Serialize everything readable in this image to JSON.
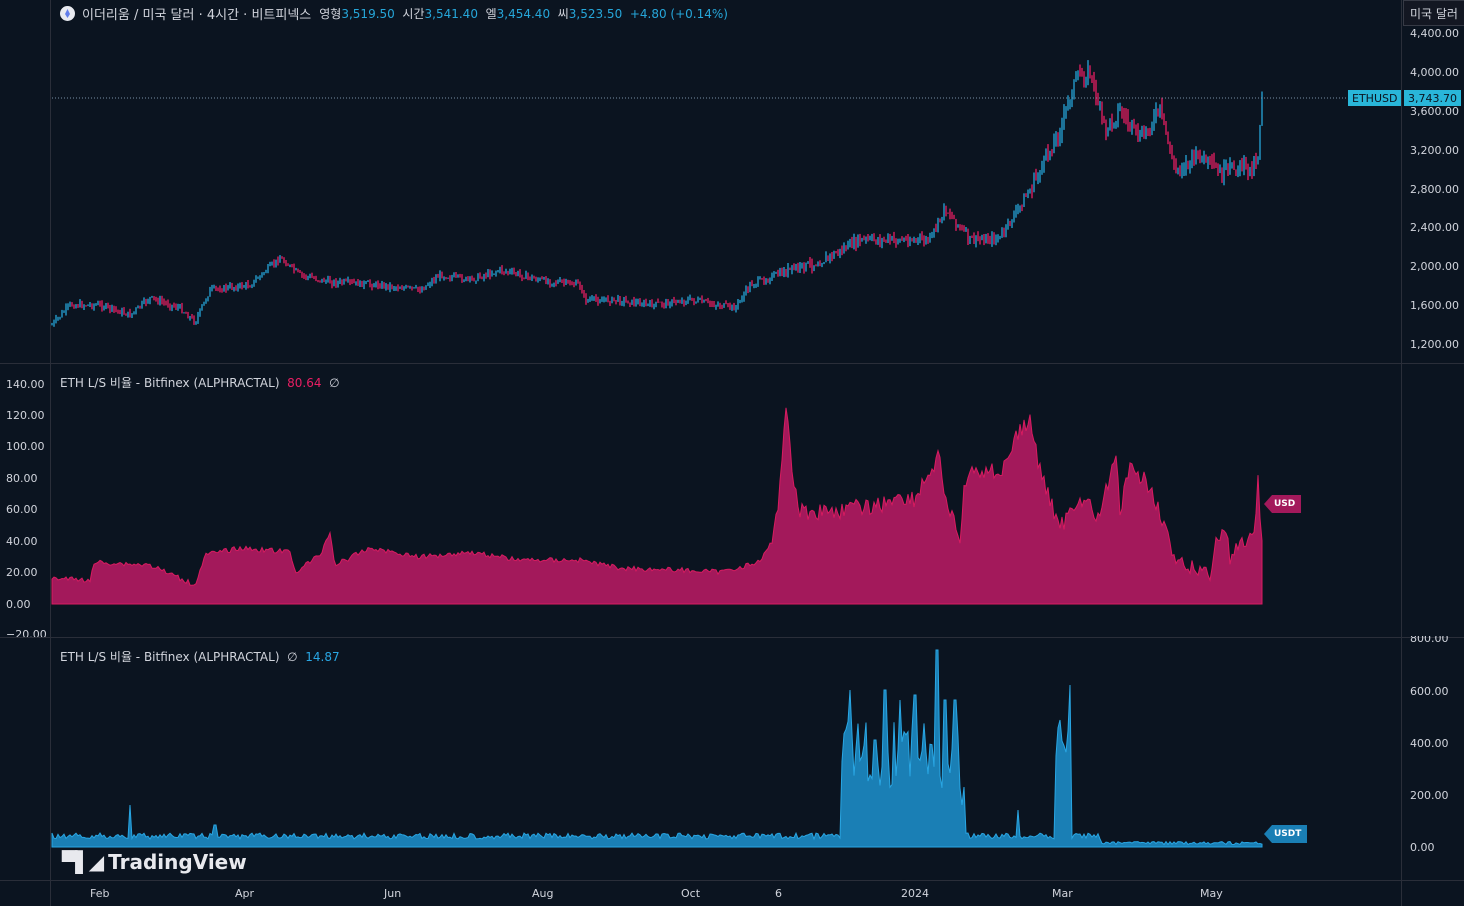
{
  "header": {
    "title": "이더리움 / 미국 달러 · 4시간 · 비트피넥스",
    "ohlc": [
      {
        "label": "영형",
        "value": "3,519.50"
      },
      {
        "label": "시간",
        "value": "3,541.40"
      },
      {
        "label": "엘",
        "value": "3,454.40"
      },
      {
        "label": "씨",
        "value": "3,523.50"
      }
    ],
    "change": "+4.80 (+0.14%)"
  },
  "currency_button": "미국 달러",
  "price_axis": [
    "4,400.00",
    "4,000.00",
    "3,600.00",
    "3,200.00",
    "2,800.00",
    "2,400.00",
    "2,000.00",
    "1,600.00",
    "1,200.00"
  ],
  "symbol_tag": "ETHUSD",
  "last_price": "3,743.70",
  "indicator1": {
    "title": "ETH L/S 비율 - Bitfinex (ALPHRACTAL)",
    "value": "80.64",
    "extra": "∅",
    "axis": [
      "140.00",
      "120.00",
      "100.00",
      "80.00",
      "60.00",
      "40.00",
      "20.00",
      "0.00",
      "−20.00"
    ],
    "flag": "USD"
  },
  "indicator2": {
    "title": "ETH L/S 비율 - Bitfinex (ALPHRACTAL)",
    "extra": "∅",
    "value": "14.87",
    "axis": [
      "800.00",
      "600.00",
      "400.00",
      "200.00",
      "0.00"
    ],
    "flag": "USDT"
  },
  "time_axis": [
    "Feb",
    "Apr",
    "Jun",
    "Aug",
    "Oct",
    "6",
    "2024",
    "Mar",
    "May"
  ],
  "logo": "TradingView",
  "colors": {
    "up": "#26a6d9",
    "down": "#e91e63",
    "usd_fill": "#a3195b",
    "usdt_fill": "#1a8bc4"
  }
}
